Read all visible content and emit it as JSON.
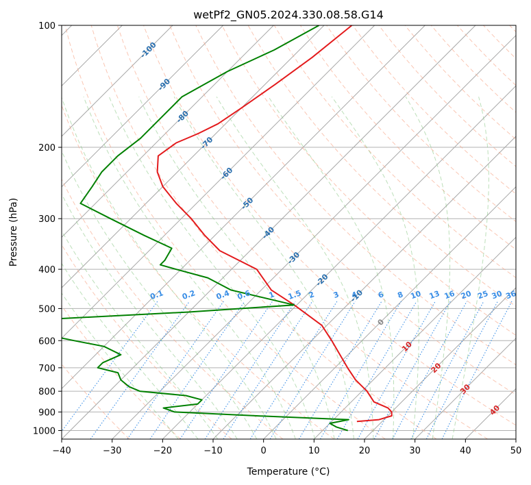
{
  "chart_data": {
    "type": "line",
    "chart_kind": "skew-t log-p diagram",
    "title": "wetPf2_GN05.2024.330.08.58.G14",
    "xlabel": "Temperature (°C)",
    "ylabel": "Pressure (hPa)",
    "xlim": [
      -40,
      50
    ],
    "ylim": [
      1050,
      100
    ],
    "y_scale": "log",
    "x_ticks": [
      -40,
      -30,
      -20,
      -10,
      0,
      10,
      20,
      30,
      40,
      50
    ],
    "x_tick_labels": [
      "−40",
      "−30",
      "−20",
      "−10",
      "0",
      "10",
      "20",
      "30",
      "40",
      "50"
    ],
    "y_ticks": [
      100,
      200,
      300,
      400,
      500,
      600,
      700,
      800,
      900,
      1000
    ],
    "y_tick_labels": [
      "100",
      "200",
      "300",
      "400",
      "500",
      "600",
      "700",
      "800",
      "900",
      "1000"
    ],
    "grid": true,
    "series": [
      {
        "role": "temperature",
        "color": "#e31a1c",
        "points": [
          [
            100,
            -64.5
          ],
          [
            120,
            -66
          ],
          [
            140,
            -68
          ],
          [
            160,
            -70
          ],
          [
            175,
            -71.5
          ],
          [
            185,
            -73.5
          ],
          [
            195,
            -76
          ],
          [
            210,
            -77
          ],
          [
            230,
            -74
          ],
          [
            250,
            -70
          ],
          [
            275,
            -64
          ],
          [
            300,
            -58
          ],
          [
            330,
            -52
          ],
          [
            360,
            -46
          ],
          [
            400,
            -35
          ],
          [
            450,
            -28
          ],
          [
            490,
            -20.5
          ],
          [
            550,
            -11
          ],
          [
            600,
            -6
          ],
          [
            700,
            2.5
          ],
          [
            750,
            6.5
          ],
          [
            800,
            11
          ],
          [
            850,
            14.5
          ],
          [
            880,
            18.5
          ],
          [
            900,
            20
          ],
          [
            920,
            20.8
          ],
          [
            940,
            19
          ],
          [
            950,
            15
          ]
        ]
      },
      {
        "role": "dewpoint",
        "color": "#008000",
        "points": [
          [
            100,
            -71
          ],
          [
            115,
            -75
          ],
          [
            130,
            -80
          ],
          [
            150,
            -84
          ],
          [
            170,
            -84
          ],
          [
            190,
            -84
          ],
          [
            210,
            -85
          ],
          [
            230,
            -85
          ],
          [
            250,
            -84
          ],
          [
            275,
            -83
          ],
          [
            300,
            -74
          ],
          [
            330,
            -64
          ],
          [
            355,
            -56
          ],
          [
            380,
            -55
          ],
          [
            390,
            -55
          ],
          [
            400,
            -51
          ],
          [
            420,
            -43
          ],
          [
            450,
            -36
          ],
          [
            490,
            -20.5
          ],
          [
            510,
            -40
          ],
          [
            530,
            -65
          ],
          [
            545,
            -67
          ],
          [
            560,
            -68
          ],
          [
            580,
            -64
          ],
          [
            600,
            -57
          ],
          [
            620,
            -50
          ],
          [
            650,
            -45
          ],
          [
            680,
            -47
          ],
          [
            700,
            -47
          ],
          [
            720,
            -42
          ],
          [
            750,
            -40
          ],
          [
            780,
            -37
          ],
          [
            800,
            -34
          ],
          [
            820,
            -24
          ],
          [
            840,
            -20
          ],
          [
            860,
            -20
          ],
          [
            880,
            -26
          ],
          [
            900,
            -23
          ],
          [
            920,
            -6
          ],
          [
            940,
            13
          ],
          [
            960,
            10
          ],
          [
            980,
            12
          ],
          [
            1000,
            15
          ]
        ]
      }
    ],
    "reference_lines": {
      "isotherms_step": 10,
      "dry_adiabats": "potential temperature, °C",
      "moist_adiabats": "wet-bulb potential temperature, °C",
      "mixing_ratio": "g/kg"
    },
    "isotherm_labels": [
      {
        "value": -100,
        "p": 115,
        "text": "-100"
      },
      {
        "value": -90,
        "p": 140,
        "text": "-90"
      },
      {
        "value": -80,
        "p": 168,
        "text": "-80"
      },
      {
        "value": -70,
        "p": 195,
        "text": "-70"
      },
      {
        "value": -60,
        "p": 232,
        "text": "-60"
      },
      {
        "value": -50,
        "p": 275,
        "text": "-50"
      },
      {
        "value": -40,
        "p": 325,
        "text": "-40"
      },
      {
        "value": -30,
        "p": 375,
        "text": "-30"
      },
      {
        "value": -20,
        "p": 425,
        "text": "-20"
      },
      {
        "value": -10,
        "p": 465,
        "text": "-10"
      },
      {
        "value": 0,
        "p": 540,
        "text": "0"
      },
      {
        "value": 10,
        "p": 620,
        "text": "10"
      },
      {
        "value": 20,
        "p": 700,
        "text": "20"
      },
      {
        "value": 30,
        "p": 790,
        "text": "30"
      },
      {
        "value": 40,
        "p": 890,
        "text": "40"
      }
    ],
    "mixing_ratio_labels": [
      "0.1",
      "0.2",
      "0.4",
      "0.6",
      "1",
      "1.5",
      "2",
      "3",
      "4",
      "6",
      "8",
      "10",
      "13",
      "16",
      "20",
      "25",
      "30",
      "36"
    ],
    "mixing_ratio_label_pressure": 480
  }
}
